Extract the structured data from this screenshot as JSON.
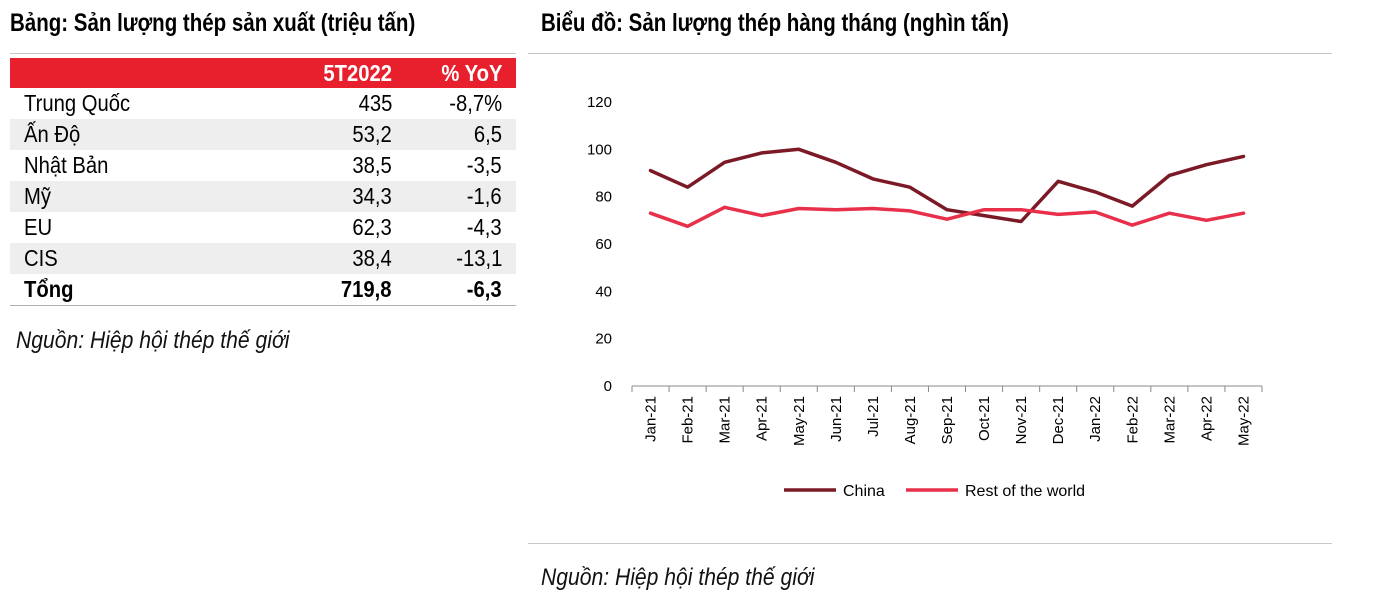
{
  "table": {
    "title": "Bảng: Sản lượng thép sản xuất (triệu tấn)",
    "headers": [
      "",
      "5T2022",
      "% YoY"
    ],
    "rows": [
      {
        "name": "Trung Quốc",
        "value": "435",
        "yoy": "-8,7%"
      },
      {
        "name": "Ấn Độ",
        "value": "53,2",
        "yoy": "6,5"
      },
      {
        "name": "Nhật Bản",
        "value": "38,5",
        "yoy": "-3,5"
      },
      {
        "name": "Mỹ",
        "value": "34,3",
        "yoy": "-1,6"
      },
      {
        "name": "EU",
        "value": "62,3",
        "yoy": "-4,3"
      },
      {
        "name": "CIS",
        "value": "38,4",
        "yoy": "-13,1"
      }
    ],
    "total": {
      "name": "Tổng",
      "value": "719,8",
      "yoy": "-6,3"
    },
    "source": "Nguồn: Hiệp hội thép thế giới",
    "header_color": "#e8202e"
  },
  "chart": {
    "title": "Biểu đồ: Sản lượng thép hàng tháng (nghìn tấn)",
    "source": "Nguồn: Hiệp hội thép thế giới"
  },
  "chart_data": {
    "type": "line",
    "title": "Biểu đồ: Sản lượng thép hàng tháng (nghìn tấn)",
    "xlabel": "",
    "ylabel": "",
    "ylim": [
      0,
      120
    ],
    "yticks": [
      0,
      20,
      40,
      60,
      80,
      100,
      120
    ],
    "grid": false,
    "legend_position": "bottom",
    "categories": [
      "Jan-21",
      "Feb-21",
      "Mar-21",
      "Apr-21",
      "May-21",
      "Jun-21",
      "Jul-21",
      "Aug-21",
      "Sep-21",
      "Oct-21",
      "Nov-21",
      "Dec-21",
      "Jan-22",
      "Feb-22",
      "Mar-22",
      "Apr-22",
      "May-22"
    ],
    "series": [
      {
        "name": "China",
        "color": "#7b1a26",
        "values": [
          91,
          84,
          94.5,
          98.5,
          100,
          94.5,
          87.5,
          84,
          74.5,
          72,
          69.5,
          86.5,
          82,
          76,
          89,
          93.5,
          97
        ]
      },
      {
        "name": "Rest of the world",
        "color": "#e8304a",
        "values": [
          73,
          67.5,
          75.5,
          72,
          75,
          74.5,
          75,
          74,
          70.5,
          74.5,
          74.5,
          72.5,
          73.5,
          68,
          73,
          70,
          73
        ]
      }
    ]
  }
}
